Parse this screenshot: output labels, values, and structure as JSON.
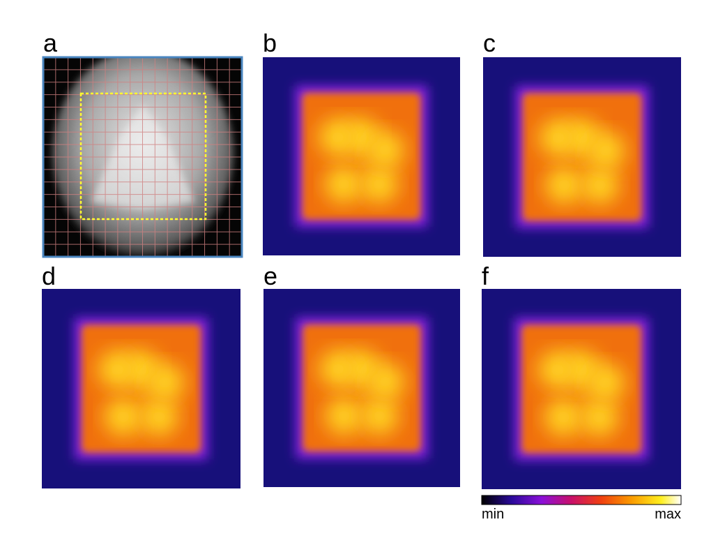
{
  "panels": [
    {
      "label": "a"
    },
    {
      "label": "b"
    },
    {
      "label": "c"
    },
    {
      "label": "d"
    },
    {
      "label": "e"
    },
    {
      "label": "f"
    }
  ],
  "colorbar": {
    "min_label": "min",
    "max_label": "max"
  }
}
